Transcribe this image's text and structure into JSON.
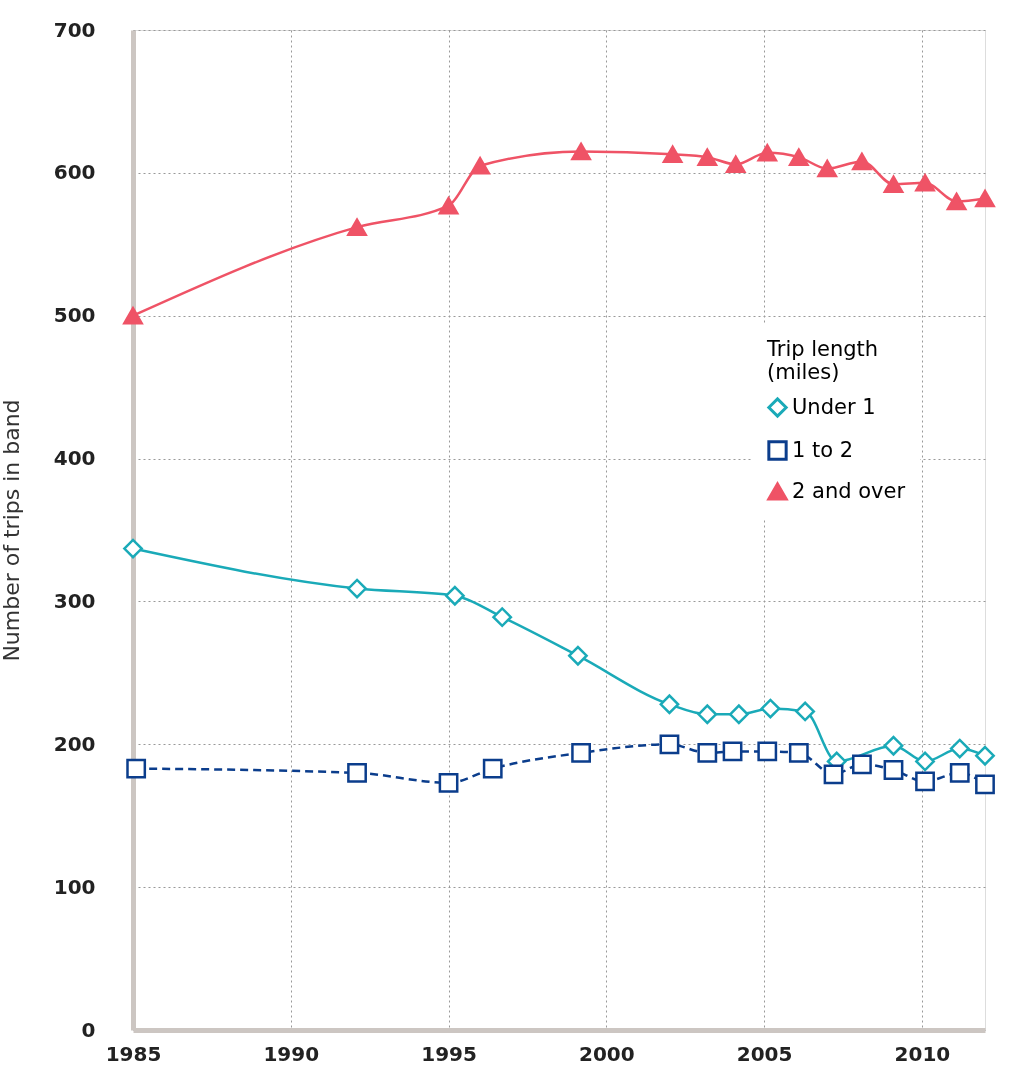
{
  "chart_data": {
    "type": "line",
    "ylabel": "Number of trips in band",
    "legend_title": "Trip length (miles)",
    "xlim": [
      1985,
      2012
    ],
    "xticks": [
      1985,
      1990,
      1995,
      2000,
      2005,
      2010
    ],
    "ylim": [
      0,
      700
    ],
    "yticks": [
      0,
      100,
      200,
      300,
      400,
      500,
      600,
      700
    ],
    "grid": true,
    "legend": "top right",
    "series": [
      {
        "name": "Under 1",
        "color": "#1aaab8",
        "marker": "diamond",
        "line_style": "solid",
        "x": [
          1985,
          1992.1,
          1995.2,
          1996.7,
          1999.1,
          2002.0,
          2003.2,
          2004.2,
          2005.2,
          2006.3,
          2007.3,
          2009.1,
          2010.1,
          2011.2,
          2012
        ],
        "values": [
          337,
          309,
          304,
          289,
          262,
          228,
          221,
          221,
          225,
          223,
          188,
          199,
          188,
          197,
          192
        ]
      },
      {
        "name": "1 to 2",
        "color": "#0b3d8c",
        "marker": "square",
        "line_style": "dashed",
        "x": [
          1985.1,
          1992.1,
          1995,
          1996.4,
          1999.2,
          2002,
          2003.2,
          2004,
          2005.1,
          2006.1,
          2007.2,
          2008.1,
          2009.1,
          2010.1,
          2011.2,
          2012
        ],
        "values": [
          183,
          180,
          173,
          183,
          194,
          200,
          194,
          195,
          195,
          194,
          179,
          186,
          182,
          174,
          180,
          172
        ]
      },
      {
        "name": "2 and over",
        "color": "#ef5366",
        "marker": "triangle",
        "line_style": "solid",
        "x": [
          1985,
          1992.1,
          1995,
          1996,
          1999.2,
          2002.1,
          2003.2,
          2004.1,
          2005.1,
          2006.1,
          2007,
          2008.1,
          2009.1,
          2010.1,
          2011.1,
          2012
        ],
        "values": [
          500,
          562,
          577,
          605,
          615,
          613,
          611,
          606,
          614,
          611,
          603,
          608,
          592,
          593,
          580,
          582
        ]
      }
    ]
  }
}
